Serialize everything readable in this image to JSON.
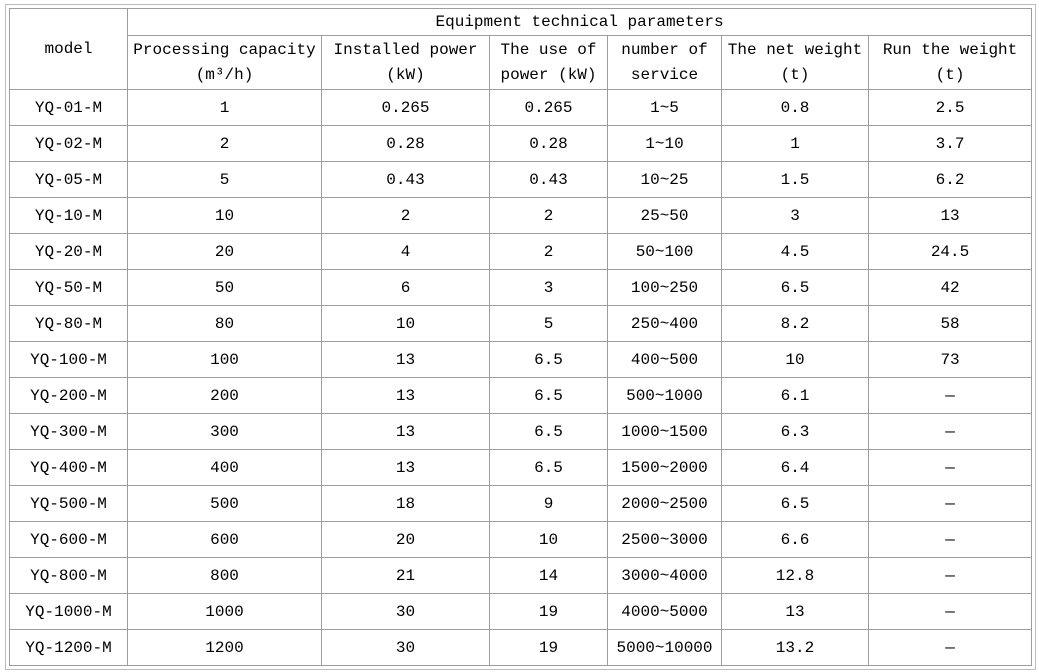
{
  "page": {
    "text_color": "#000000",
    "border_color": "#9d9d9d",
    "background_color": "#ffffff"
  },
  "table": {
    "header": {
      "model_label": "model",
      "group_title": "Equipment technical parameters",
      "columns": [
        {
          "line1": "Processing capacity",
          "line2": "(m³/h)"
        },
        {
          "line1": "Installed power",
          "line2": "(kW)"
        },
        {
          "line1": "The use of",
          "line2": "power (kW)"
        },
        {
          "line1": "number of",
          "line2": "service"
        },
        {
          "line1": "The net weight",
          "line2": "(t)"
        },
        {
          "line1": "Run the weight",
          "line2": "(t)"
        }
      ]
    },
    "rows": [
      [
        "YQ-01-M",
        "1",
        "0.265",
        "0.265",
        "1~5",
        "0.8",
        "2.5"
      ],
      [
        "YQ-02-M",
        "2",
        "0.28",
        "0.28",
        "1~10",
        "1",
        "3.7"
      ],
      [
        "YQ-05-M",
        "5",
        "0.43",
        "0.43",
        "10~25",
        "1.5",
        "6.2"
      ],
      [
        "YQ-10-M",
        "10",
        "2",
        "2",
        "25~50",
        "3",
        "13"
      ],
      [
        "YQ-20-M",
        "20",
        "4",
        "2",
        "50~100",
        "4.5",
        "24.5"
      ],
      [
        "YQ-50-M",
        "50",
        "6",
        "3",
        "100~250",
        "6.5",
        "42"
      ],
      [
        "YQ-80-M",
        "80",
        "10",
        "5",
        "250~400",
        "8.2",
        "58"
      ],
      [
        "YQ-100-M",
        "100",
        "13",
        "6.5",
        "400~500",
        "10",
        "73"
      ],
      [
        "YQ-200-M",
        "200",
        "13",
        "6.5",
        "500~1000",
        "6.1",
        "—"
      ],
      [
        "YQ-300-M",
        "300",
        "13",
        "6.5",
        "1000~1500",
        "6.3",
        "—"
      ],
      [
        "YQ-400-M",
        "400",
        "13",
        "6.5",
        "1500~2000",
        "6.4",
        "—"
      ],
      [
        "YQ-500-M",
        "500",
        "18",
        "9",
        "2000~2500",
        "6.5",
        "—"
      ],
      [
        "YQ-600-M",
        "600",
        "20",
        "10",
        "2500~3000",
        "6.6",
        "—"
      ],
      [
        "YQ-800-M",
        "800",
        "21",
        "14",
        "3000~4000",
        "12.8",
        "—"
      ],
      [
        "YQ-1000-M",
        "1000",
        "30",
        "19",
        "4000~5000",
        "13",
        "—"
      ],
      [
        "YQ-1200-M",
        "1200",
        "30",
        "19",
        "5000~10000",
        "13.2",
        "—"
      ]
    ]
  }
}
